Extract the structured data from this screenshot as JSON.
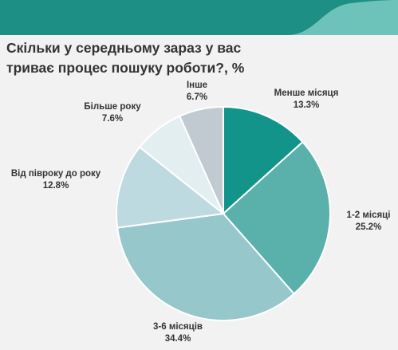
{
  "title_line1": "Скільки у середньому зараз у вас",
  "title_line2": "триває процес пошуку роботи?, %",
  "colors": {
    "background": "#f2f2f2",
    "band_dark": "#1d8f85",
    "band_light": "#6dc3ba"
  },
  "chart_data": {
    "type": "pie",
    "title": "Скільки у середньому зараз у вас триває процес пошуку роботи?, %",
    "slices": [
      {
        "label": "Менше місяця",
        "value": 13.3,
        "value_label": "13.3%",
        "color": "#13948b"
      },
      {
        "label": "1-2 місяці",
        "value": 25.2,
        "value_label": "25.2%",
        "color": "#5ab1ab"
      },
      {
        "label": "3-6 місяців",
        "value": 34.4,
        "value_label": "34.4%",
        "color": "#96c7cb"
      },
      {
        "label": "Від півроку до року",
        "value": 12.8,
        "value_label": "12.8%",
        "color": "#bcdadf"
      },
      {
        "label": "Більше року",
        "value": 7.6,
        "value_label": "7.6%",
        "color": "#e3eef1"
      },
      {
        "label": "Інше",
        "value": 6.7,
        "value_label": "6.7%",
        "color": "#c1cad1"
      }
    ]
  }
}
